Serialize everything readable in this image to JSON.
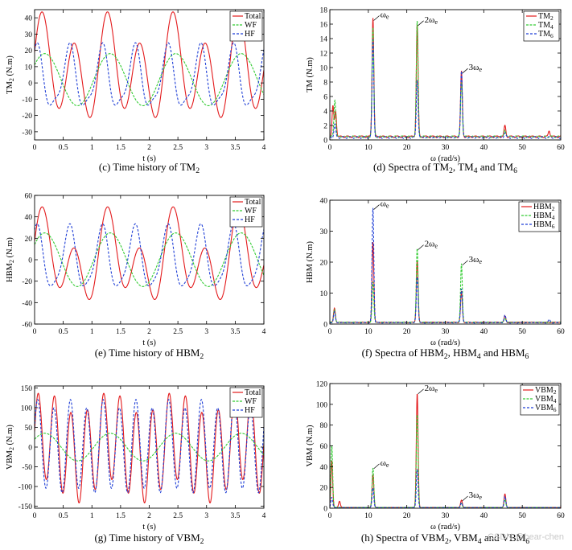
{
  "chart_data": [
    {
      "id": "c",
      "type": "line",
      "kind": "time",
      "caption": "(c) Time history of TM2",
      "ylabel": "TM2 (N.m)",
      "xlabel": "t (s)",
      "xlim": [
        0,
        4
      ],
      "ylim": [
        -35,
        45
      ],
      "xticks": [
        "0",
        "0.5",
        "1",
        "1.5",
        "2",
        "2.5",
        "3",
        "3.5",
        "4"
      ],
      "yticks": [
        "-30",
        "-20",
        "-10",
        "0",
        "10",
        "20",
        "30",
        "40"
      ],
      "legend": [
        "Total",
        "WF",
        "HF"
      ],
      "series": [
        {
          "name": "Total",
          "color": "#e31a1c",
          "dash": "",
          "mean": 8,
          "waves": [
            [
              10,
              5.5,
              0.6
            ],
            [
              26,
              11,
              0.2
            ]
          ]
        },
        {
          "name": "WF",
          "color": "#33cc33",
          "dash": "3,1.5",
          "mean": 2,
          "waves": [
            [
              16,
              5.5,
              0.6
            ]
          ]
        },
        {
          "name": "HF",
          "color": "#1f3fd6",
          "dash": "3,2",
          "mean": 2,
          "waves": [
            [
              18,
              11,
              1.2
            ],
            [
              5,
              22,
              0.3
            ]
          ]
        }
      ]
    },
    {
      "id": "d",
      "type": "line",
      "kind": "spectrum",
      "caption": "(d) Spectra of TM2, TM4 and TM6",
      "ylabel": "TM (N.m)",
      "xlabel": "ω (rad/s)",
      "xlim": [
        0,
        60
      ],
      "ylim": [
        0,
        18
      ],
      "xticks": [
        "0",
        "10",
        "20",
        "30",
        "40",
        "50",
        "60"
      ],
      "yticks": [
        "0",
        "2",
        "4",
        "6",
        "8",
        "10",
        "12",
        "14",
        "16",
        "18"
      ],
      "legend": [
        "TM2",
        "TM4",
        "TM6"
      ],
      "annotations": [
        {
          "text": "ωe",
          "x": 11.2,
          "y": 16.5
        },
        {
          "text": "2ωe",
          "x": 22.7,
          "y": 15.8
        },
        {
          "text": "3ωe",
          "x": 34.2,
          "y": 9.2
        }
      ],
      "series": [
        {
          "name": "TM2",
          "color": "#e31a1c",
          "dash": "",
          "base": 0.3,
          "peaks": [
            [
              0.8,
              4.2
            ],
            [
              1.5,
              3.5
            ],
            [
              11.2,
              16.5
            ],
            [
              22.7,
              15.5
            ],
            [
              34.2,
              9.0
            ],
            [
              45.5,
              1.5
            ],
            [
              57,
              0.8
            ]
          ]
        },
        {
          "name": "TM4",
          "color": "#33cc33",
          "dash": "3,1.5",
          "base": 0.3,
          "peaks": [
            [
              1.3,
              5.2
            ],
            [
              11.2,
              15.0
            ],
            [
              22.7,
              16.0
            ],
            [
              34.2,
              7.5
            ],
            [
              45.5,
              1.0
            ]
          ]
        },
        {
          "name": "TM6",
          "color": "#1f3fd6",
          "dash": "3,2",
          "base": 0.2,
          "peaks": [
            [
              1.3,
              1.8
            ],
            [
              11.2,
              13.5
            ],
            [
              22.7,
              8.0
            ],
            [
              34.2,
              9.2
            ],
            [
              45.5,
              0.6
            ]
          ]
        }
      ]
    },
    {
      "id": "e",
      "type": "line",
      "kind": "time",
      "caption": "(e) Time history of HBM2",
      "ylabel": "HBM2 (N.m)",
      "xlabel": "t (s)",
      "xlim": [
        0,
        4
      ],
      "ylim": [
        -60,
        60
      ],
      "xticks": [
        "0",
        "0.5",
        "1",
        "1.5",
        "2",
        "2.5",
        "3",
        "3.5",
        "4"
      ],
      "yticks": [
        "-60",
        "-40",
        "-20",
        "0",
        "20",
        "40",
        "60"
      ],
      "legend": [
        "Total",
        "WF",
        "HF"
      ],
      "series": [
        {
          "name": "Total",
          "color": "#e31a1c",
          "dash": "",
          "mean": 0,
          "waves": [
            [
              20,
              5.5,
              0.6
            ],
            [
              30,
              11,
              0.2
            ]
          ]
        },
        {
          "name": "WF",
          "color": "#33cc33",
          "dash": "3,1.5",
          "mean": 0,
          "waves": [
            [
              25,
              5.5,
              0.6
            ]
          ]
        },
        {
          "name": "HF",
          "color": "#1f3fd6",
          "dash": "3,2",
          "mean": 0,
          "waves": [
            [
              28,
              11,
              1.2
            ],
            [
              6,
              22,
              0.3
            ]
          ]
        }
      ]
    },
    {
      "id": "f",
      "type": "line",
      "kind": "spectrum",
      "caption": "(f) Spectra of HBM2, HBM4 and HBM6",
      "ylabel": "HBM (N.m)",
      "xlabel": "ω (rad/s)",
      "xlim": [
        0,
        60
      ],
      "ylim": [
        0,
        40
      ],
      "xticks": [
        "0",
        "10",
        "20",
        "30",
        "40",
        "50",
        "60"
      ],
      "yticks": [
        "0",
        "10",
        "20",
        "30",
        "40"
      ],
      "legend": [
        "HBM2",
        "HBM4",
        "HBM6"
      ],
      "annotations": [
        {
          "text": "ωe",
          "x": 11.2,
          "y": 37
        },
        {
          "text": "2ωe",
          "x": 22.7,
          "y": 24
        },
        {
          "text": "3ωe",
          "x": 34.2,
          "y": 19
        }
      ],
      "series": [
        {
          "name": "HBM2",
          "color": "#e31a1c",
          "dash": "",
          "base": 0.4,
          "peaks": [
            [
              1.2,
              4.5
            ],
            [
              11.2,
              26
            ],
            [
              22.7,
              20
            ],
            [
              34.2,
              10
            ],
            [
              45.5,
              2
            ]
          ]
        },
        {
          "name": "HBM4",
          "color": "#33cc33",
          "dash": "3,1.5",
          "base": 0.4,
          "peaks": [
            [
              1.2,
              4.2
            ],
            [
              11.2,
              13
            ],
            [
              22.7,
              24
            ],
            [
              34.2,
              19
            ],
            [
              45.5,
              1.5
            ]
          ]
        },
        {
          "name": "HBM6",
          "color": "#1f3fd6",
          "dash": "3,2",
          "base": 0.3,
          "peaks": [
            [
              1.2,
              3.5
            ],
            [
              11.2,
              37
            ],
            [
              22.7,
              15
            ],
            [
              34.2,
              11
            ],
            [
              45.5,
              2.5
            ],
            [
              57,
              1
            ]
          ]
        }
      ]
    },
    {
      "id": "g",
      "type": "line",
      "kind": "time",
      "caption": "(g) Time history of VBM2",
      "ylabel": "VBM2 (N.m)",
      "xlabel": "t (s)",
      "xlim": [
        0,
        4
      ],
      "ylim": [
        -155,
        155
      ],
      "xticks": [
        "0",
        "0.5",
        "1",
        "1.5",
        "2",
        "2.5",
        "3",
        "3.5",
        "4"
      ],
      "yticks": [
        "-150",
        "-100",
        "-50",
        "0",
        "50",
        "100",
        "150"
      ],
      "legend": [
        "Total",
        "WF",
        "HF"
      ],
      "series": [
        {
          "name": "Total",
          "color": "#e31a1c",
          "dash": "",
          "mean": 0,
          "waves": [
            [
              112,
              22,
              0.2
            ],
            [
              30,
              5.5,
              0.6
            ]
          ]
        },
        {
          "name": "WF",
          "color": "#33cc33",
          "dash": "3,1.5",
          "mean": 0,
          "waves": [
            [
              35,
              5.5,
              0.6
            ]
          ]
        },
        {
          "name": "HF",
          "color": "#1f3fd6",
          "dash": "3,2",
          "mean": 0,
          "waves": [
            [
              110,
              22,
              0.4
            ],
            [
              12,
              11,
              0.5
            ]
          ]
        }
      ]
    },
    {
      "id": "h",
      "type": "line",
      "kind": "spectrum",
      "caption": "(h) Spectra of VBM2, VBM4 and VBM6",
      "ylabel": "VBM (N.m)",
      "xlabel": "ω (rad/s)",
      "xlim": [
        0,
        60
      ],
      "ylim": [
        0,
        120
      ],
      "xticks": [
        "0",
        "10",
        "20",
        "30",
        "40",
        "50",
        "60"
      ],
      "yticks": [
        "0",
        "20",
        "40",
        "60",
        "80",
        "100",
        "120"
      ],
      "legend": [
        "VBM2",
        "VBM4",
        "VBM6"
      ],
      "annotations": [
        {
          "text": "2ωe",
          "x": 22.7,
          "y": 110
        },
        {
          "text": "ωe",
          "x": 11.2,
          "y": 38
        },
        {
          "text": "3ωe",
          "x": 34.2,
          "y": 7
        }
      ],
      "series": [
        {
          "name": "VBM2",
          "color": "#e31a1c",
          "dash": "",
          "base": 0.5,
          "peaks": [
            [
              0.5,
              45
            ],
            [
              2.5,
              6
            ],
            [
              11.2,
              32
            ],
            [
              22.7,
              110
            ],
            [
              34.2,
              7
            ],
            [
              45.5,
              13
            ]
          ]
        },
        {
          "name": "VBM4",
          "color": "#33cc33",
          "dash": "3,1.5",
          "base": 0.5,
          "peaks": [
            [
              0.5,
              60
            ],
            [
              11.2,
              38
            ],
            [
              22.7,
              90
            ],
            [
              34.2,
              4
            ],
            [
              45.5,
              8
            ]
          ]
        },
        {
          "name": "VBM6",
          "color": "#1f3fd6",
          "dash": "3,2",
          "base": 0.4,
          "peaks": [
            [
              0.5,
              10
            ],
            [
              11.2,
              19
            ],
            [
              22.7,
              37
            ],
            [
              34.2,
              5
            ],
            [
              45.5,
              11
            ]
          ]
        }
      ]
    }
  ],
  "watermark": "CSDN @bear-chen"
}
